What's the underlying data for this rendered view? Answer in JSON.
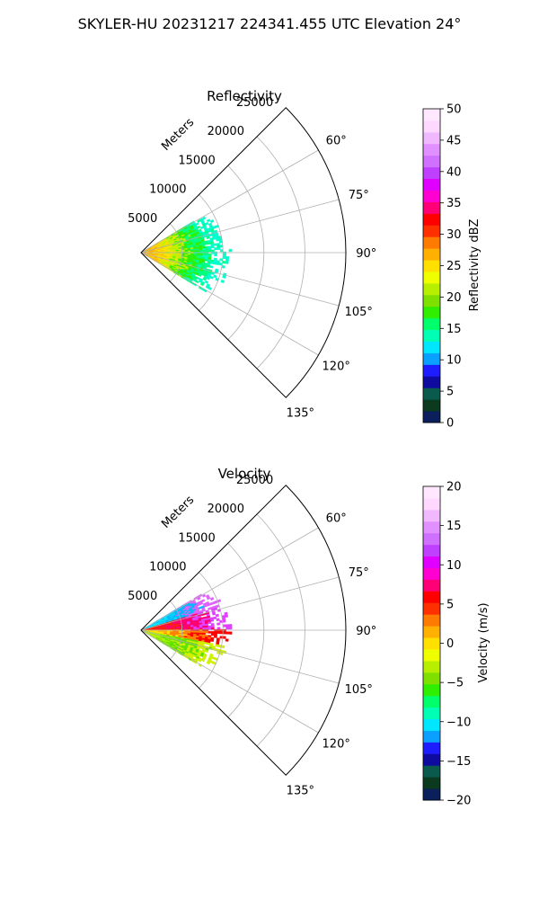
{
  "figure": {
    "suptitle": "SKYLER-HU  20231217  224341.455 UTC Elevation 24°"
  },
  "chart_data": [
    {
      "type": "heatmap",
      "projection": "polar-sector",
      "title": "Reflectivity",
      "radial_label": "Meters",
      "radial_ticks": [
        "5000",
        "10000",
        "15000",
        "20000",
        "25000"
      ],
      "radial_values": [
        5000,
        10000,
        15000,
        20000,
        25000
      ],
      "rlim": [
        0,
        25000
      ],
      "azimuth_ticks": [
        "60°",
        "75°",
        "90°",
        "105°",
        "120°",
        "135°"
      ],
      "azimuth_values": [
        60,
        75,
        90,
        105,
        120,
        135
      ],
      "azimuth_range": [
        45,
        135
      ],
      "grid": true,
      "colorbar": {
        "label": "Reflectivity dBZ",
        "ticks": [
          "0",
          "5",
          "10",
          "15",
          "20",
          "25",
          "30",
          "35",
          "40",
          "45",
          "50"
        ],
        "range": [
          0,
          50
        ],
        "colors": [
          "#0a1f5c",
          "#0b3a1e",
          "#0a5a4e",
          "#0f0aa0",
          "#1d1dff",
          "#0aa0ff",
          "#00e6ff",
          "#00ffb4",
          "#00ff6a",
          "#30ee00",
          "#7fe000",
          "#b8ee00",
          "#f0ff00",
          "#ffe000",
          "#ffb000",
          "#ff7a00",
          "#ff3000",
          "#ff0000",
          "#ff0077",
          "#ff00d0",
          "#e000ff",
          "#bf40ff",
          "#d070ff",
          "#e090ff",
          "#f0b8ff",
          "#ffd8ff",
          "#ffe8ff"
        ]
      },
      "echo": {
        "az_start": 59,
        "az_end": 121,
        "max_range_m": 11000,
        "band_colors": [
          "#ffb000",
          "#ffe000",
          "#c0f000",
          "#30ee00",
          "#00ff80",
          "#00ffcc"
        ]
      }
    },
    {
      "type": "heatmap",
      "projection": "polar-sector",
      "title": "Velocity",
      "radial_label": "Meters",
      "radial_ticks": [
        "5000",
        "10000",
        "15000",
        "20000",
        "25000"
      ],
      "radial_values": [
        5000,
        10000,
        15000,
        20000,
        25000
      ],
      "rlim": [
        0,
        25000
      ],
      "azimuth_ticks": [
        "60°",
        "75°",
        "90°",
        "105°",
        "120°",
        "135°"
      ],
      "azimuth_values": [
        60,
        75,
        90,
        105,
        120,
        135
      ],
      "azimuth_range": [
        45,
        135
      ],
      "grid": true,
      "colorbar": {
        "label": "Velocity (m/s)",
        "ticks": [
          "−20",
          "−15",
          "−10",
          "−5",
          "0",
          "5",
          "10",
          "15",
          "20"
        ],
        "range": [
          -20,
          20
        ],
        "colors": [
          "#0a1f5c",
          "#0b3a1e",
          "#0a5a4e",
          "#0f0aa0",
          "#1d1dff",
          "#0aa0ff",
          "#00e6ff",
          "#00ffb4",
          "#00ff6a",
          "#30ee00",
          "#7fe000",
          "#b8ee00",
          "#f0ff00",
          "#ffe000",
          "#ffb000",
          "#ff7a00",
          "#ff3000",
          "#ff0000",
          "#ff0077",
          "#ff00d0",
          "#e000ff",
          "#bf40ff",
          "#d070ff",
          "#e090ff",
          "#f0b8ff",
          "#ffd8ff",
          "#ffe8ff"
        ]
      },
      "echo": {
        "az_start": 59,
        "az_end": 121,
        "max_range_m": 11000,
        "regions": [
          {
            "az_from": 59,
            "az_to": 72,
            "colors": [
              "#00e6ff",
              "#00b8ff",
              "#e060ff"
            ]
          },
          {
            "az_from": 72,
            "az_to": 88,
            "colors": [
              "#ff2000",
              "#ff0070",
              "#e040ff"
            ]
          },
          {
            "az_from": 88,
            "az_to": 100,
            "colors": [
              "#ffe000",
              "#ff8000",
              "#ff0000"
            ]
          },
          {
            "az_from": 100,
            "az_to": 121,
            "colors": [
              "#b0f000",
              "#60e000",
              "#d0f000"
            ]
          }
        ]
      }
    }
  ]
}
